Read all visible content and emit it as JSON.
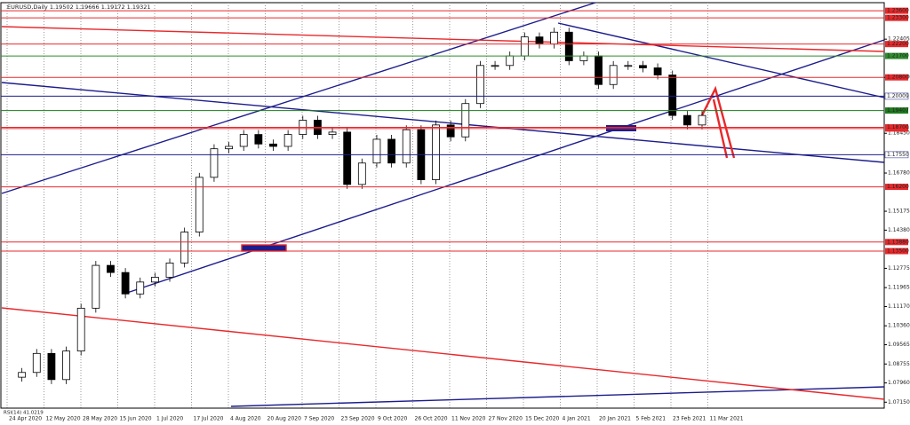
{
  "chart_data": {
    "type": "candlestick",
    "title": "EURUSD,Daily 1.19502 1.19666 1.19172 1.19321",
    "indicator": "RSI(14) 41.0219",
    "ylim": [
      1.069,
      1.2394
    ],
    "yticks": [
      1.22405,
      {
        "value": 1.208,
        "label": "1.20800"
      },
      {
        "value": 1.1845,
        "label": "1.18450"
      },
      {
        "value": 1.1678,
        "label": "1.16780"
      },
      1.15175,
      {
        "value": 1.1438,
        "label": "1.14380"
      },
      1.12775,
      1.11965,
      {
        "value": 1.1117,
        "label": "1.11170"
      },
      {
        "value": 1.1036,
        "label": "1.10360"
      },
      1.09565,
      1.08755,
      {
        "value": 1.0796,
        "label": "1.07960"
      },
      {
        "value": 1.0715,
        "label": "1.07150"
      }
    ],
    "levels": [
      {
        "value": 1.236,
        "label": "1.23600",
        "color": "#e8282b"
      },
      {
        "value": 1.233,
        "label": "1.23300",
        "color": "#e8282b"
      },
      {
        "value": 1.222,
        "label": "1.22200",
        "color": "#e8282b"
      },
      {
        "value": 1.217,
        "label": "1.21700",
        "color": "#2e8b2e"
      },
      {
        "value": 1.208,
        "label": "1.20800",
        "color": "#e8282b"
      },
      {
        "value": 1.20009,
        "label": "1.20009",
        "color": "#1c1c8c"
      },
      {
        "value": 1.19407,
        "label": "1.19407",
        "color": "#1e7a1e"
      },
      {
        "value": 1.1865,
        "label": "1.18650",
        "color": "#e8282b"
      },
      {
        "value": 1.187,
        "label": "1.18700",
        "color": "#e8282b"
      },
      {
        "value": 1.1755,
        "label": "1.17550",
        "color": "#1c1c8c"
      },
      {
        "value": 1.162,
        "label": "1.16200",
        "color": "#e8282b"
      },
      {
        "value": 1.1388,
        "label": "1.13880",
        "color": "#e8282b"
      },
      {
        "value": 1.135,
        "label": "1.13500",
        "color": "#e8282b"
      }
    ],
    "dates": [
      "24 Apr 2020",
      "12 May 2020",
      "28 May 2020",
      "15 Jun 2020",
      "1 Jul 2020",
      "17 Jul 2020",
      "4 Aug 2020",
      "20 Aug 2020",
      "7 Sep 2020",
      "23 Sep 2020",
      "9 Oct 2020",
      "26 Oct 2020",
      "11 Nov 2020",
      "27 Nov 2020",
      "15 Dec 2020",
      "4 Jan 2021",
      "20 Jan 2021",
      "5 Feb 2021",
      "23 Feb 2021",
      "11 Mar 2021"
    ],
    "closes": [
      1.082,
      1.084,
      1.092,
      1.081,
      1.093,
      1.111,
      1.129,
      1.126,
      1.117,
      1.122,
      1.124,
      1.13,
      1.143,
      1.166,
      1.178,
      1.179,
      1.184,
      1.18,
      1.179,
      1.184,
      1.19,
      1.184,
      1.185,
      1.163,
      1.172,
      1.182,
      1.172,
      1.186,
      1.165,
      1.188,
      1.183,
      1.197,
      1.213,
      1.213,
      1.217,
      1.225,
      1.222,
      1.227,
      1.215,
      1.217,
      1.205,
      1.213,
      1.213,
      1.212,
      1.209,
      1.192,
      1.188,
      1.192
    ]
  }
}
